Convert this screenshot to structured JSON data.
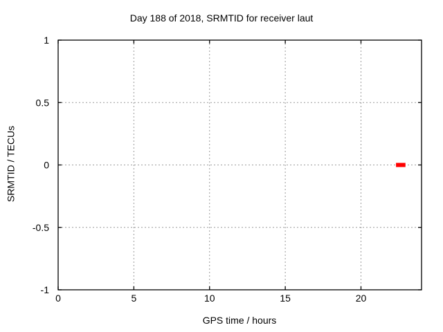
{
  "chart_data": {
    "type": "scatter",
    "title": "Day 188 of 2018, SRMTID for receiver laut",
    "xlabel": "GPS time / hours",
    "ylabel": "SRMTID / TECUs",
    "xlim": [
      0,
      24
    ],
    "ylim": [
      -1,
      1
    ],
    "xticks": {
      "values": [
        0,
        5,
        10,
        15,
        20
      ],
      "labels": [
        "0",
        "5",
        "10",
        "15",
        "20"
      ]
    },
    "yticks": {
      "values": [
        -1,
        -0.5,
        0,
        0.5,
        1
      ],
      "labels": [
        "-1",
        "-0.5",
        "0",
        "0.5",
        "1"
      ]
    },
    "grid": true,
    "grid_style": "dashed",
    "legend": "none",
    "colors": {
      "background": "#ffffff",
      "axis": "#000000",
      "grid": "#999999",
      "points": "#ff0000"
    },
    "series": [
      {
        "name": "SRMTID",
        "marker": "square",
        "color": "#ff0000",
        "points": [
          {
            "x": 22.45,
            "y": 0
          },
          {
            "x": 22.5,
            "y": 0
          },
          {
            "x": 22.55,
            "y": 0
          },
          {
            "x": 22.6,
            "y": 0
          },
          {
            "x": 22.65,
            "y": 0
          },
          {
            "x": 22.7,
            "y": 0
          },
          {
            "x": 22.75,
            "y": 0
          },
          {
            "x": 22.8,
            "y": 0
          }
        ]
      }
    ]
  }
}
